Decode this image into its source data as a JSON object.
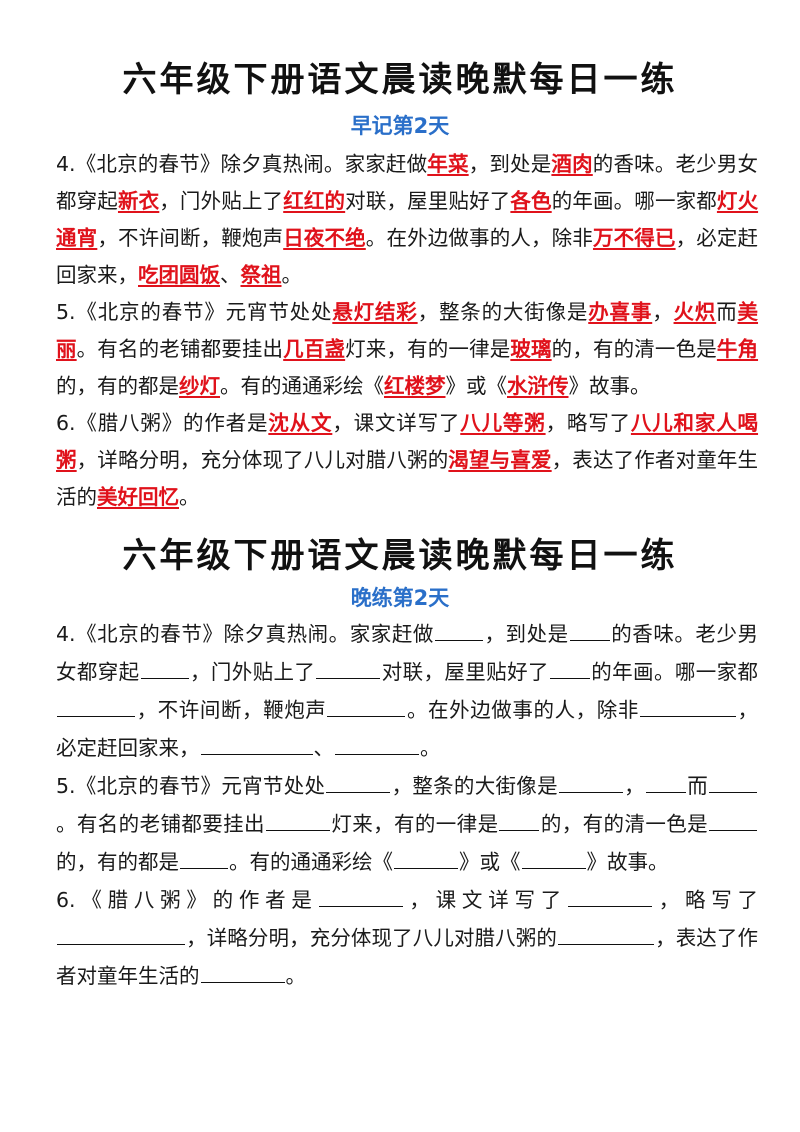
{
  "morning": {
    "title": "六年级下册语文晨读晚默每日一练",
    "subtitle": "早记第2天",
    "p4": [
      "4.《北京的春节》除夕真热闹。家家赶做",
      "年菜",
      "，到处是",
      "酒肉",
      "的香味。老少男女都穿起",
      "新衣",
      "，门外贴上了",
      "红红的",
      "对联，屋里贴好了",
      "各色",
      "的年画。哪一家都",
      "灯火通宵",
      "，不许间断，鞭炮声",
      "日夜不绝",
      "。在外边做事的人，除非",
      "万不得已",
      "，必定赶回家来，",
      "吃团圆饭",
      "、",
      "祭祖",
      "。"
    ],
    "p5": [
      "5.《北京的春节》元宵节处处",
      "悬灯结彩",
      "，整条的大街像是",
      "办喜事",
      "，",
      "火炽",
      "而",
      "美丽",
      "。有名的老铺都要挂出",
      "几百盏",
      "灯来，有的一律是",
      "玻璃",
      "的，有的清一色是",
      "牛角",
      "的，有的都是",
      "纱灯",
      "。有的通通彩绘《",
      "红楼梦",
      "》或《",
      "水浒传",
      "》故事。"
    ],
    "p6": [
      "6.《腊八粥》的作者是",
      "沈从文",
      "，课文详写了",
      "八儿等粥",
      "，略写了",
      "八儿和家人喝粥",
      "，详略分明，充分体现了八儿对腊八粥的",
      "渴望与喜爱",
      "，表达了作者对童年生活的",
      "美好回忆",
      "。"
    ]
  },
  "evening": {
    "title": "六年级下册语文晨读晚默每日一练",
    "subtitle": "晚练第2天",
    "p4": [
      "4.《北京的春节》除夕真热闹。家家赶做",
      "，到处是",
      "的香味。老少男女都穿起",
      "，门外贴上了",
      "对联，屋里贴好了",
      "的年画。哪一家都",
      "，不许间断，鞭炮声",
      "。在外边做事的人，除非",
      "，必定赶回家来，",
      "、",
      "。"
    ],
    "p5": [
      "5.《北京的春节》元宵节处处",
      "，整条的大街像是",
      "，",
      "而",
      "。有名的老铺都要挂出",
      "灯来，有的一律是",
      "的，有的清一色是",
      "的，有的都是",
      "。有的通通彩绘《",
      "》或《",
      "》故事。"
    ],
    "p6": [
      "6.《腊八粥》的作者是",
      "，课文详写了",
      "，略写了",
      "，详略分明，充分体现了八儿对腊八粥的",
      "，表达了作者对童年生活的",
      "。"
    ]
  },
  "colors": {
    "answer": "#e0121b",
    "subtitle": "#2a6fc9",
    "text": "#1a1a1a"
  }
}
